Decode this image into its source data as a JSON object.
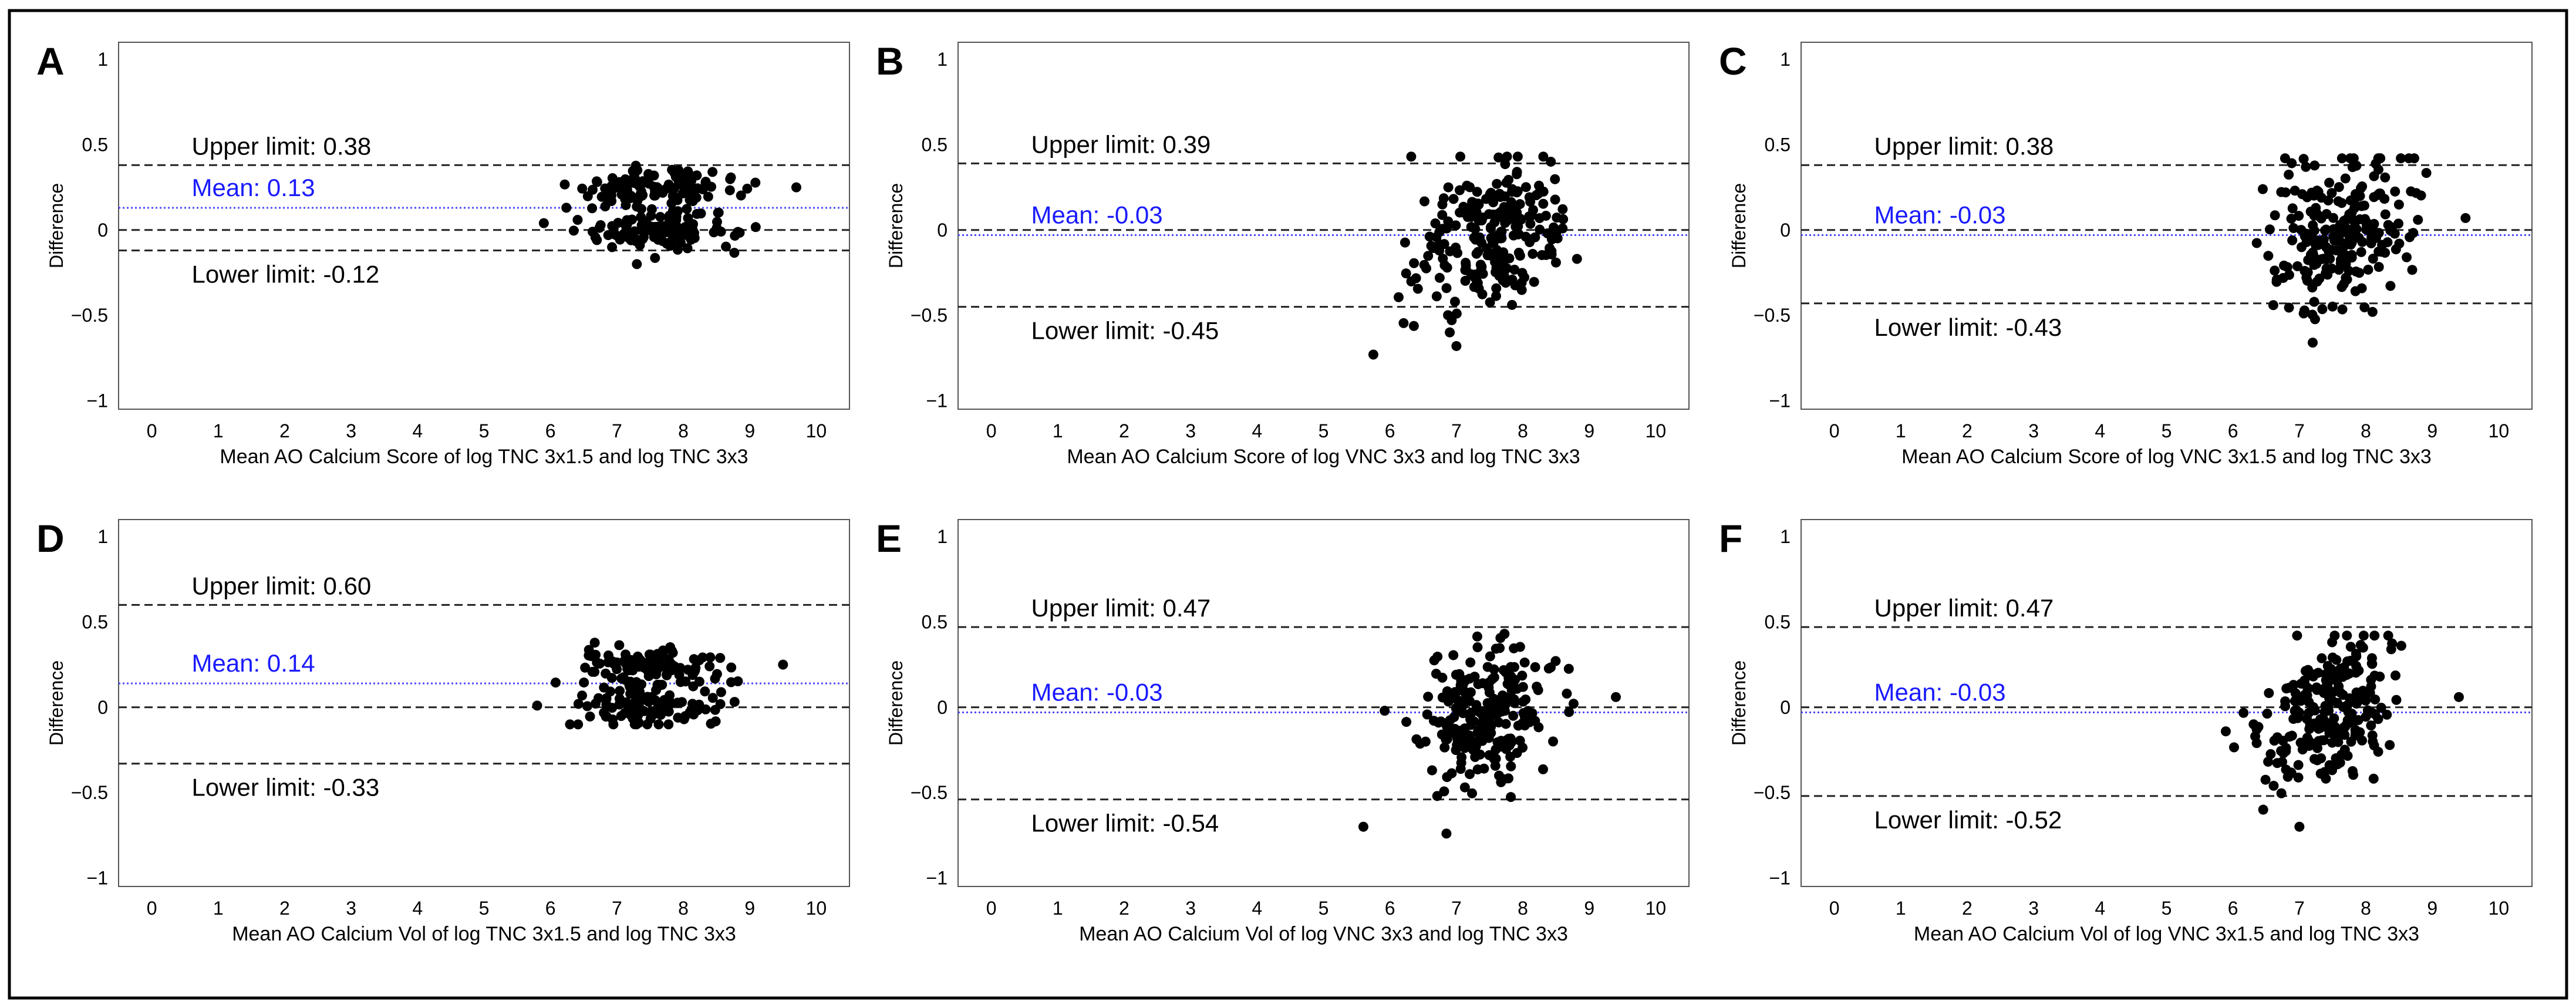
{
  "figure": {
    "description_free": true
  },
  "chart_data": [
    {
      "panel_label": "A",
      "type": "scatter",
      "xlabel": "Mean AO Calcium Score of log TNC 3x1.5 and log TNC 3x3",
      "ylabel": "Difference",
      "xlim": [
        -0.5,
        10.5
      ],
      "ylim": [
        -1.05,
        1.1
      ],
      "xticks": [
        0,
        1,
        2,
        3,
        4,
        5,
        6,
        7,
        8,
        9,
        10
      ],
      "yticks": [
        {
          "value": 1,
          "label": "1"
        },
        {
          "value": 0.5,
          "label": "0.5"
        },
        {
          "value": 0,
          "label": "0"
        },
        {
          "value": -0.5,
          "label": "−0.5"
        },
        {
          "value": -1,
          "label": "−1"
        }
      ],
      "upper_limit": 0.38,
      "upper_text": "Upper limit: 0.38",
      "mean": 0.13,
      "mean_text": "Mean: 0.13",
      "lower_limit": -0.12,
      "lower_text": "Lower limit: -0.12",
      "cloud": {
        "x_center": 7.6,
        "x_spread": 0.95,
        "x_min": 6.0,
        "x_max": 9.7,
        "y_low_center": 0.0,
        "y_high_center": 0.24,
        "y_spread": 0.06,
        "y_min": -0.2,
        "y_max": 0.42,
        "bimodal": true,
        "count": 230
      },
      "outliers": [
        [
          5.9,
          0.04
        ],
        [
          9.7,
          0.25
        ],
        [
          7.3,
          -0.2
        ]
      ]
    },
    {
      "panel_label": "B",
      "type": "scatter",
      "xlabel": "Mean AO Calcium Score of log VNC 3x3 and log TNC 3x3",
      "ylabel": "Difference",
      "xlim": [
        -0.5,
        10.5
      ],
      "ylim": [
        -1.05,
        1.1
      ],
      "xticks": [
        0,
        1,
        2,
        3,
        4,
        5,
        6,
        7,
        8,
        9,
        10
      ],
      "yticks": [
        {
          "value": 1,
          "label": "1"
        },
        {
          "value": 0.5,
          "label": "0.5"
        },
        {
          "value": 0,
          "label": "0"
        },
        {
          "value": -0.5,
          "label": "−0.5"
        },
        {
          "value": -1,
          "label": "−1"
        }
      ],
      "upper_limit": 0.39,
      "upper_text": "Upper limit: 0.39",
      "mean": -0.03,
      "mean_text": "Mean: -0.03",
      "lower_limit": -0.45,
      "lower_text": "Lower limit: -0.45",
      "cloud": {
        "x_center": 7.5,
        "x_spread": 0.85,
        "x_min": 5.8,
        "x_max": 9.4,
        "y_center": -0.03,
        "y_spread": 0.2,
        "y_min": -0.65,
        "y_max": 0.43,
        "bimodal": false,
        "count": 230
      },
      "outliers": [
        [
          5.75,
          -0.73
        ],
        [
          7.0,
          -0.68
        ],
        [
          6.9,
          -0.6
        ]
      ]
    },
    {
      "panel_label": "C",
      "type": "scatter",
      "xlabel": "Mean AO Calcium Score of log VNC 3x1.5 and log TNC 3x3",
      "ylabel": "Difference",
      "xlim": [
        -0.5,
        10.5
      ],
      "ylim": [
        -1.05,
        1.1
      ],
      "xticks": [
        0,
        1,
        2,
        3,
        4,
        5,
        6,
        7,
        8,
        9,
        10
      ],
      "yticks": [
        {
          "value": 1,
          "label": "1"
        },
        {
          "value": 0.5,
          "label": "0.5"
        },
        {
          "value": 0,
          "label": "0"
        },
        {
          "value": -0.5,
          "label": "−0.5"
        },
        {
          "value": -1,
          "label": "−1"
        }
      ],
      "upper_limit": 0.38,
      "upper_text": "Upper limit: 0.38",
      "mean": -0.03,
      "mean_text": "Mean: -0.03",
      "lower_limit": -0.43,
      "lower_text": "Lower limit: -0.43",
      "cloud": {
        "x_center": 7.6,
        "x_spread": 0.85,
        "x_min": 5.8,
        "x_max": 9.6,
        "y_center": -0.03,
        "y_spread": 0.2,
        "y_min": -0.66,
        "y_max": 0.42,
        "bimodal": false,
        "count": 230
      },
      "outliers": [
        [
          7.2,
          -0.66
        ],
        [
          8.1,
          -0.48
        ],
        [
          9.5,
          0.07
        ]
      ]
    },
    {
      "panel_label": "D",
      "type": "scatter",
      "xlabel": "Mean AO Calcium Vol of log TNC 3x1.5 and log TNC 3x3",
      "ylabel": "Difference",
      "xlim": [
        -0.5,
        10.5
      ],
      "ylim": [
        -1.05,
        1.1
      ],
      "xticks": [
        0,
        1,
        2,
        3,
        4,
        5,
        6,
        7,
        8,
        9,
        10
      ],
      "yticks": [
        {
          "value": 1,
          "label": "1"
        },
        {
          "value": 0.5,
          "label": "0.5"
        },
        {
          "value": 0,
          "label": "0"
        },
        {
          "value": -0.5,
          "label": "−0.5"
        },
        {
          "value": -1,
          "label": "−1"
        }
      ],
      "upper_limit": 0.6,
      "upper_text": "Upper limit: 0.60",
      "mean": 0.14,
      "mean_text": "Mean: 0.14",
      "lower_limit": -0.33,
      "lower_text": "Lower limit: -0.33",
      "cloud": {
        "x_center": 7.5,
        "x_spread": 0.9,
        "x_min": 5.8,
        "x_max": 9.5,
        "y_low_center": 0.0,
        "y_high_center": 0.24,
        "y_spread": 0.06,
        "y_min": -0.1,
        "y_max": 0.42,
        "bimodal": true,
        "count": 230
      },
      "outliers": [
        [
          5.8,
          0.01
        ],
        [
          9.5,
          0.25
        ]
      ]
    },
    {
      "panel_label": "E",
      "type": "scatter",
      "xlabel": "Mean AO Calcium Vol of log VNC 3x3 and log TNC 3x3",
      "ylabel": "Difference",
      "xlim": [
        -0.5,
        10.5
      ],
      "ylim": [
        -1.05,
        1.1
      ],
      "xticks": [
        0,
        1,
        2,
        3,
        4,
        5,
        6,
        7,
        8,
        9,
        10
      ],
      "yticks": [
        {
          "value": 1,
          "label": "1"
        },
        {
          "value": 0.5,
          "label": "0.5"
        },
        {
          "value": 0,
          "label": "0"
        },
        {
          "value": -0.5,
          "label": "−0.5"
        },
        {
          "value": -1,
          "label": "−1"
        }
      ],
      "upper_limit": 0.47,
      "upper_text": "Upper limit: 0.47",
      "mean": -0.03,
      "mean_text": "Mean: -0.03",
      "lower_limit": -0.54,
      "lower_text": "Lower limit: -0.54",
      "cloud": {
        "x_center": 7.4,
        "x_spread": 0.85,
        "x_min": 5.8,
        "x_max": 9.4,
        "y_center": -0.03,
        "y_spread": 0.22,
        "y_min": -0.7,
        "y_max": 0.43,
        "bimodal": false,
        "count": 230
      },
      "outliers": [
        [
          5.6,
          -0.7
        ],
        [
          6.85,
          -0.74
        ],
        [
          9.4,
          0.06
        ]
      ]
    },
    {
      "panel_label": "F",
      "type": "scatter",
      "xlabel": "Mean AO Calcium Vol of log VNC 3x1.5 and log TNC 3x3",
      "ylabel": "Difference",
      "xlim": [
        -0.5,
        10.5
      ],
      "ylim": [
        -1.05,
        1.1
      ],
      "xticks": [
        0,
        1,
        2,
        3,
        4,
        5,
        6,
        7,
        8,
        9,
        10
      ],
      "yticks": [
        {
          "value": 1,
          "label": "1"
        },
        {
          "value": 0.5,
          "label": "0.5"
        },
        {
          "value": 0,
          "label": "0"
        },
        {
          "value": -0.5,
          "label": "−0.5"
        },
        {
          "value": -1,
          "label": "−1"
        }
      ],
      "upper_limit": 0.47,
      "upper_text": "Upper limit: 0.47",
      "mean": -0.03,
      "mean_text": "Mean: -0.03",
      "lower_limit": -0.52,
      "lower_text": "Lower limit: -0.52",
      "cloud": {
        "x_center": 7.4,
        "x_spread": 0.85,
        "x_min": 5.6,
        "x_max": 9.4,
        "y_center": -0.03,
        "y_spread": 0.21,
        "y_min": -0.6,
        "y_max": 0.42,
        "bimodal": false,
        "count": 230
      },
      "outliers": [
        [
          7.0,
          -0.7
        ],
        [
          9.4,
          0.06
        ]
      ]
    }
  ],
  "colors": {
    "points": "#000000",
    "limit_lines": "#222222",
    "mean_line": "#4a4aff",
    "mean_text": "#1a1aff",
    "text": "#000000",
    "axes": "#555555"
  }
}
